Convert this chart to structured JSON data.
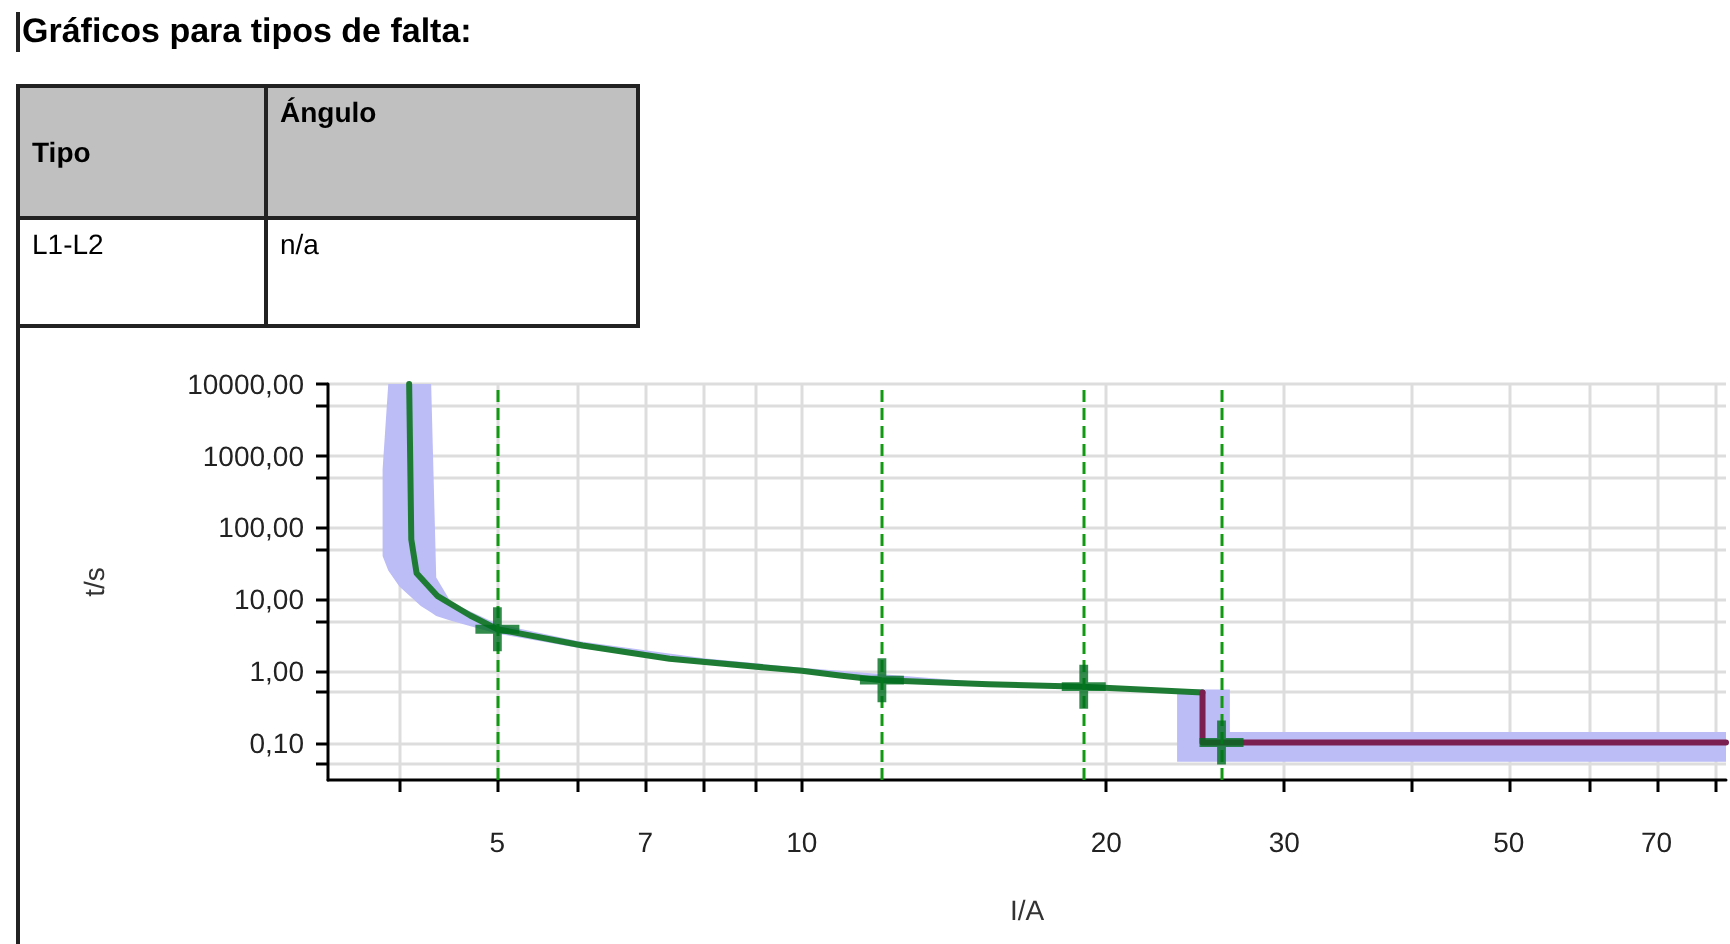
{
  "chart_data": {
    "type": "line",
    "title": "Gráficos para tipos de falta:",
    "annotations": [
      "Tipo",
      "Ángulo",
      "L1-L2",
      "n/a"
    ],
    "xlabel": "I/A",
    "ylabel": "t/s",
    "log": "xy",
    "grid": true,
    "xlim": [
      3.4,
      82
    ],
    "xticks": [
      {
        "value": 4,
        "label": null
      },
      5,
      {
        "value": 6,
        "label": null
      },
      7,
      {
        "value": 8,
        "label": null
      },
      {
        "value": 9,
        "label": null
      },
      10,
      20,
      30,
      {
        "value": 40,
        "label": null
      },
      50,
      {
        "value": 60,
        "label": null
      },
      70,
      {
        "value": 80,
        "label": null
      }
    ],
    "ylim": [
      0.03,
      10000
    ],
    "yticks": [
      {
        "value": 0.05,
        "label": null
      },
      {
        "value": 0.1,
        "label": "0,10"
      },
      {
        "value": 0.5,
        "label": null
      },
      {
        "value": 1,
        "label": "1,00"
      },
      {
        "value": 5,
        "label": null
      },
      {
        "value": 10,
        "label": "10,00"
      },
      {
        "value": 50,
        "label": null
      },
      {
        "value": 100,
        "label": "100,00"
      },
      {
        "value": 500,
        "label": null
      },
      {
        "value": 1000,
        "label": "1000,00"
      },
      {
        "value": 5000,
        "label": null
      },
      {
        "value": 10000,
        "label": "10000,00"
      }
    ],
    "ref_lines": [
      {
        "axis": "x",
        "value": 5,
        "color": "#119911",
        "line_style": "dashed"
      },
      {
        "axis": "x",
        "value": 12,
        "color": "#119911",
        "line_style": "dashed"
      },
      {
        "axis": "x",
        "value": 19,
        "color": "#119911",
        "line_style": "dashed"
      },
      {
        "axis": "x",
        "value": 26,
        "color": "#119911",
        "line_style": "dashed"
      }
    ],
    "series": [
      {
        "type": "area",
        "color": "#bcbcf7",
        "x": [
          3.85,
          3.9,
          4.0,
          4.2,
          4.3,
          4.35,
          4.5,
          5,
          6,
          8,
          10,
          15,
          20,
          23.5,
          23.5,
          26.5,
          26.5,
          82
        ],
        "upper": [
          640,
          10000,
          10000,
          10000,
          10000,
          20,
          9,
          4.5,
          2.6,
          1.5,
          1.1,
          0.7,
          0.62,
          0.55,
          0.55,
          0.55,
          0.14,
          0.14
        ],
        "lower": [
          40,
          25,
          15,
          8,
          6.5,
          5.8,
          5,
          3.3,
          2.1,
          1.25,
          0.95,
          0.65,
          0.57,
          0.5,
          0.054,
          0.054,
          0.054,
          0.054
        ],
        "values": [
          null,
          null,
          null,
          null,
          null,
          null,
          null,
          null,
          null,
          null,
          null,
          null,
          null,
          null,
          null,
          null,
          null,
          null
        ]
      },
      {
        "color": "#1e7b34",
        "marker": "none",
        "line_style": "solid",
        "x": [
          4.09,
          4.11,
          4.16,
          4.36,
          4.7,
          5,
          6.07,
          7.4,
          10,
          10.9,
          12,
          15.3,
          19,
          24.9
        ],
        "values": [
          10000,
          68,
          23,
          11.1,
          5.9,
          3.8,
          2.25,
          1.47,
          1.0,
          0.86,
          0.74,
          0.65,
          0.6,
          0.5
        ]
      },
      {
        "color": "#7a1f4f",
        "marker": "none",
        "line_style": "solid",
        "x": [
          24.9,
          24.9,
          82
        ],
        "values": [
          0.5,
          0.1,
          0.1
        ]
      },
      {
        "type": "scatter",
        "color": "#006e1e",
        "marker": "cross",
        "x": [
          5,
          12,
          19,
          26
        ],
        "values": [
          3.8,
          0.74,
          0.6,
          0.1
        ]
      }
    ]
  }
}
